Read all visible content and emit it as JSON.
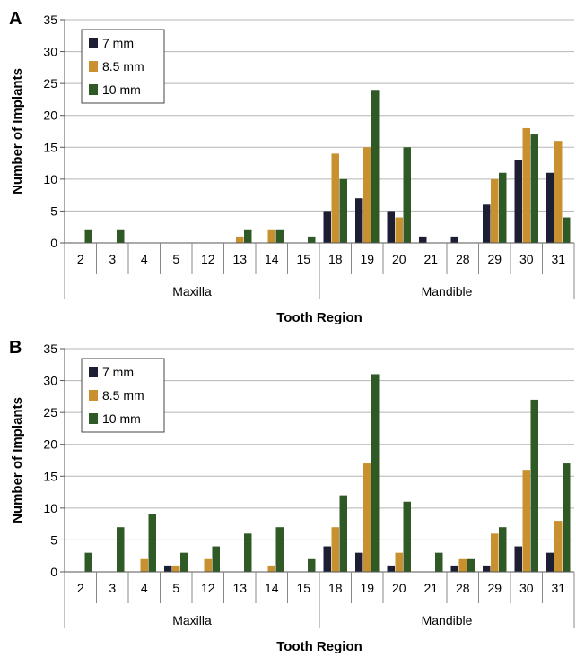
{
  "chart_data": [
    {
      "type": "bar",
      "panel_label": "A",
      "ylabel": "Number of Implants",
      "xlabel": "Tooth Region",
      "ylim": [
        0,
        35
      ],
      "yticks": [
        0,
        5,
        10,
        15,
        20,
        25,
        30,
        35
      ],
      "grid": true,
      "legend": "top-left",
      "categories": [
        "2",
        "3",
        "4",
        "5",
        "12",
        "13",
        "14",
        "15",
        "18",
        "19",
        "20",
        "21",
        "28",
        "29",
        "30",
        "31"
      ],
      "groups": [
        {
          "label": "Maxilla",
          "count": 8
        },
        {
          "label": "Mandible",
          "count": 8
        }
      ],
      "series": [
        {
          "name": "7 mm",
          "color": "#1c1f33",
          "values": [
            0,
            0,
            0,
            0,
            0,
            0,
            0,
            0,
            5,
            7,
            5,
            1,
            1,
            6,
            13,
            11
          ]
        },
        {
          "name": "8.5 mm",
          "color": "#c8902e",
          "values": [
            0,
            0,
            0,
            0,
            0,
            1,
            2,
            0,
            14,
            15,
            4,
            0,
            0,
            10,
            18,
            16
          ]
        },
        {
          "name": "10 mm",
          "color": "#2f5a25",
          "values": [
            2,
            2,
            0,
            0,
            0,
            2,
            2,
            1,
            10,
            24,
            15,
            0,
            0,
            11,
            17,
            4
          ]
        }
      ]
    },
    {
      "type": "bar",
      "panel_label": "B",
      "ylabel": "Number of Implants",
      "xlabel": "Tooth Region",
      "ylim": [
        0,
        35
      ],
      "yticks": [
        0,
        5,
        10,
        15,
        20,
        25,
        30,
        35
      ],
      "grid": true,
      "legend": "top-left",
      "categories": [
        "2",
        "3",
        "4",
        "5",
        "12",
        "13",
        "14",
        "15",
        "18",
        "19",
        "20",
        "21",
        "28",
        "29",
        "30",
        "31"
      ],
      "groups": [
        {
          "label": "Maxilla",
          "count": 8
        },
        {
          "label": "Mandible",
          "count": 8
        }
      ],
      "series": [
        {
          "name": "7 mm",
          "color": "#1c1f33",
          "values": [
            0,
            0,
            0,
            1,
            0,
            0,
            0,
            0,
            4,
            3,
            1,
            0,
            1,
            1,
            4,
            3
          ]
        },
        {
          "name": "8.5 mm",
          "color": "#c8902e",
          "values": [
            0,
            0,
            2,
            1,
            2,
            0,
            1,
            0,
            7,
            17,
            3,
            0,
            2,
            6,
            16,
            8
          ]
        },
        {
          "name": "10 mm",
          "color": "#2f5a25",
          "values": [
            3,
            7,
            9,
            3,
            4,
            6,
            7,
            2,
            12,
            31,
            11,
            3,
            2,
            7,
            27,
            17
          ]
        }
      ]
    }
  ]
}
